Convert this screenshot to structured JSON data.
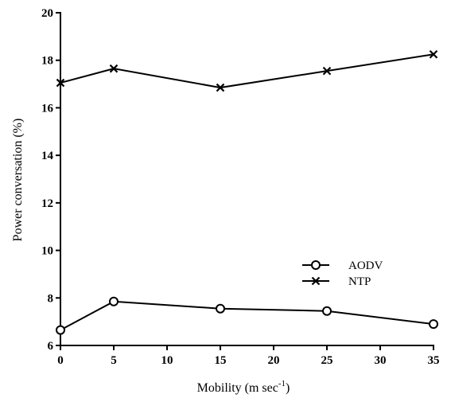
{
  "chart_data": {
    "type": "line",
    "title": "",
    "xlabel": "Mobility (m sec",
    "xlabel_sup": "-1",
    "xlabel_close": ")",
    "ylabel": "Power conversation (%)",
    "xlim": [
      0,
      35
    ],
    "ylim": [
      6,
      20
    ],
    "xticks": [
      0,
      5,
      10,
      15,
      20,
      25,
      30,
      35
    ],
    "yticks": [
      6,
      8,
      10,
      12,
      14,
      16,
      18,
      20
    ],
    "grid": false,
    "legend_position": "center-right",
    "x": [
      0,
      5,
      15,
      25,
      35
    ],
    "series": [
      {
        "name": "AODV",
        "marker": "circle",
        "values": [
          6.65,
          7.85,
          7.55,
          7.45,
          6.9
        ]
      },
      {
        "name": "NTP",
        "marker": "x",
        "values": [
          17.05,
          17.65,
          16.85,
          17.55,
          18.25
        ]
      }
    ]
  }
}
